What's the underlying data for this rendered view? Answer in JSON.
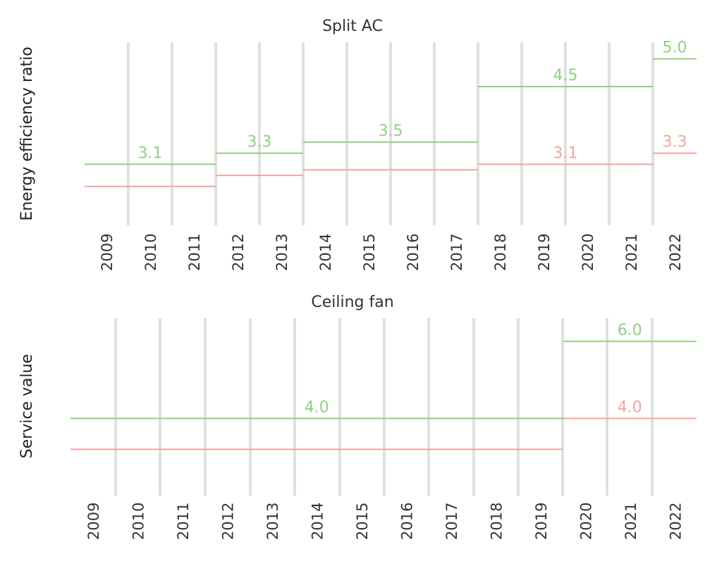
{
  "chart_data": [
    {
      "type": "line",
      "step": true,
      "title": "Split AC",
      "ylabel": "Energy efficiency ratio",
      "xlabel": "",
      "categories": [
        "2009",
        "2010",
        "2011",
        "2012",
        "2013",
        "2014",
        "2015",
        "2016",
        "2017",
        "2018",
        "2019",
        "2020",
        "2021",
        "2022"
      ],
      "ylim": [
        2.0,
        5.3
      ],
      "grid": false,
      "series": [
        {
          "color": "#8fd180",
          "segments": [
            {
              "start": "2009",
              "end": "2011",
              "value": 3.1,
              "label": "3.1"
            },
            {
              "start": "2012",
              "end": "2013",
              "value": 3.3,
              "label": "3.3"
            },
            {
              "start": "2014",
              "end": "2017",
              "value": 3.5,
              "label": "3.5"
            },
            {
              "start": "2018",
              "end": "2021",
              "value": 4.5,
              "label": "4.5"
            },
            {
              "start": "2022",
              "end": "2022",
              "value": 5.0,
              "label": "5.0"
            }
          ]
        },
        {
          "color": "#f5a3a0",
          "segments": [
            {
              "start": "2009",
              "end": "2011",
              "value": 2.7,
              "label": ""
            },
            {
              "start": "2012",
              "end": "2013",
              "value": 2.9,
              "label": ""
            },
            {
              "start": "2014",
              "end": "2017",
              "value": 3.0,
              "label": ""
            },
            {
              "start": "2018",
              "end": "2021",
              "value": 3.1,
              "label": "3.1"
            },
            {
              "start": "2022",
              "end": "2022",
              "value": 3.3,
              "label": "3.3"
            }
          ]
        }
      ],
      "period_breaks": [
        "2012",
        "2014",
        "2018",
        "2022"
      ]
    },
    {
      "type": "line",
      "step": true,
      "title": "Ceiling fan",
      "ylabel": "Service value",
      "xlabel": "",
      "categories": [
        "2009",
        "2010",
        "2011",
        "2012",
        "2013",
        "2014",
        "2015",
        "2016",
        "2017",
        "2018",
        "2019",
        "2020",
        "2021",
        "2022"
      ],
      "ylim": [
        2.0,
        6.6
      ],
      "grid": false,
      "series": [
        {
          "color": "#8fd180",
          "segments": [
            {
              "start": "2009",
              "end": "2019",
              "value": 4.0,
              "label": "4.0"
            },
            {
              "start": "2020",
              "end": "2022",
              "value": 6.0,
              "label": "6.0"
            }
          ]
        },
        {
          "color": "#f5a3a0",
          "segments": [
            {
              "start": "2009",
              "end": "2019",
              "value": 3.2,
              "label": ""
            },
            {
              "start": "2020",
              "end": "2022",
              "value": 4.0,
              "label": "4.0"
            }
          ]
        }
      ],
      "period_breaks": [
        "2020"
      ]
    }
  ]
}
